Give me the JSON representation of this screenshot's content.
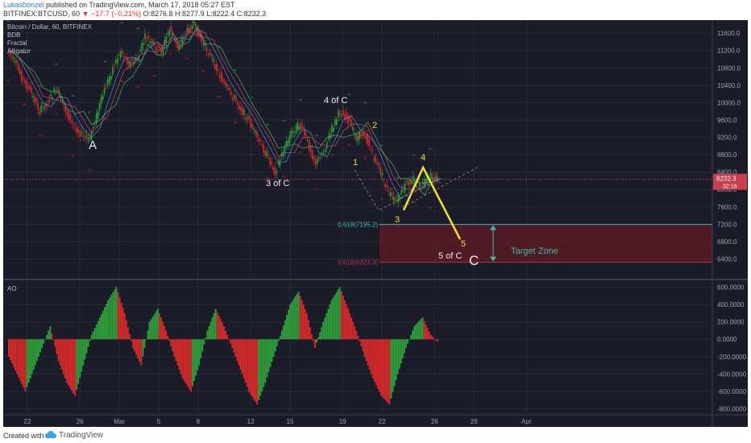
{
  "header": {
    "author": "Lukasbonzei",
    "published": " published on TradingView.com, March 17, 2018 05:27 EST",
    "symbol": "BITFINEX:BTCUSD, 60",
    "change": "−17.7 (−0.21%)",
    "ohlc": " O:8276.8 H:8277.9 L:8222.4 C:8232.3"
  },
  "legend": [
    "Bitcoin / Dollar, 60, BITFINEX",
    "BDB",
    "Fractal",
    "Alligator"
  ],
  "footer": {
    "created": "Created with",
    "brand": "TradingView"
  },
  "colors": {
    "bg": "#1a1d29",
    "up": "#2e9e3a",
    "down": "#d42a2a",
    "yellow": "#f5e02a",
    "teal": "#3fb8a8",
    "zone": "#5a1a24"
  },
  "chart_data": [
    {
      "type": "line",
      "series": [
        {
          "values": [
            11200,
            10900,
            10500,
            10200,
            9800,
            10000,
            10300,
            9900,
            9500,
            9300,
            9100,
            9700,
            10300,
            10800,
            11200,
            10900,
            11000,
            11500,
            11300,
            11200,
            11700,
            11300,
            11600,
            11800,
            11400,
            11100,
            10700,
            10300,
            10100,
            9800,
            9500,
            9100,
            8800,
            8400,
            8900,
            9300,
            9500,
            9100,
            8600,
            8900,
            9400,
            9800,
            9600,
            9200,
            9300,
            8800,
            8400,
            7900,
            7700,
            8100,
            8250,
            8050,
            8300,
            8232
          ]
        }
      ],
      "ylim": [
        6000,
        11900
      ],
      "yticks": [
        "11600.0",
        "11200.0",
        "10800.0",
        "10400.0",
        "10000.0",
        "9600.0",
        "9200.0",
        "8800.0",
        "8400.0",
        "8000.0",
        "7600.0",
        "7200.0",
        "6800.0",
        "6400.0"
      ],
      "xticks": [
        "22",
        "26",
        "Mar",
        "5",
        "8",
        "12",
        "15",
        "19",
        "22",
        "26",
        "29",
        "Apr"
      ],
      "price_label": "8232.3",
      "price_label_sub": "32:16",
      "fib_upper_label": "0.618(7195.2)",
      "fib_lower_label": "0.618(6323.3)",
      "target_zone": [
        6323.3,
        7195.2
      ],
      "annotations": [
        {
          "text": "A",
          "color": "white"
        },
        {
          "text": "3 of C",
          "color": "white"
        },
        {
          "text": "4 of C",
          "color": "white"
        },
        {
          "text": "1",
          "color": "yellow"
        },
        {
          "text": "2",
          "color": "yellow"
        },
        {
          "text": "3",
          "color": "yellow"
        },
        {
          "text": "4",
          "color": "yellow"
        },
        {
          "text": "5",
          "color": "yellow"
        },
        {
          "text": "5 of C",
          "color": "white"
        },
        {
          "text": "C",
          "color": "white"
        },
        {
          "text": "Target Zone",
          "color": "teal"
        }
      ]
    },
    {
      "type": "bar",
      "title": "AO",
      "values": [
        -200,
        -400,
        -600,
        -350,
        -100,
        150,
        -250,
        -500,
        -650,
        -300,
        50,
        250,
        450,
        600,
        300,
        -100,
        -300,
        200,
        350,
        100,
        -200,
        -450,
        -600,
        -300,
        100,
        350,
        150,
        -100,
        -350,
        -600,
        -750,
        -500,
        -200,
        100,
        400,
        550,
        300,
        -100,
        200,
        450,
        600,
        350,
        100,
        -200,
        -450,
        -650,
        -750,
        -400,
        -100,
        150,
        250,
        50,
        -50
      ],
      "ylim": [
        -850,
        650
      ],
      "yticks": [
        "600.0000",
        "400.0000",
        "200.0000",
        "0.0000",
        "-200.0000",
        "-400.0000",
        "-600.0000",
        "-800.0000"
      ]
    }
  ]
}
